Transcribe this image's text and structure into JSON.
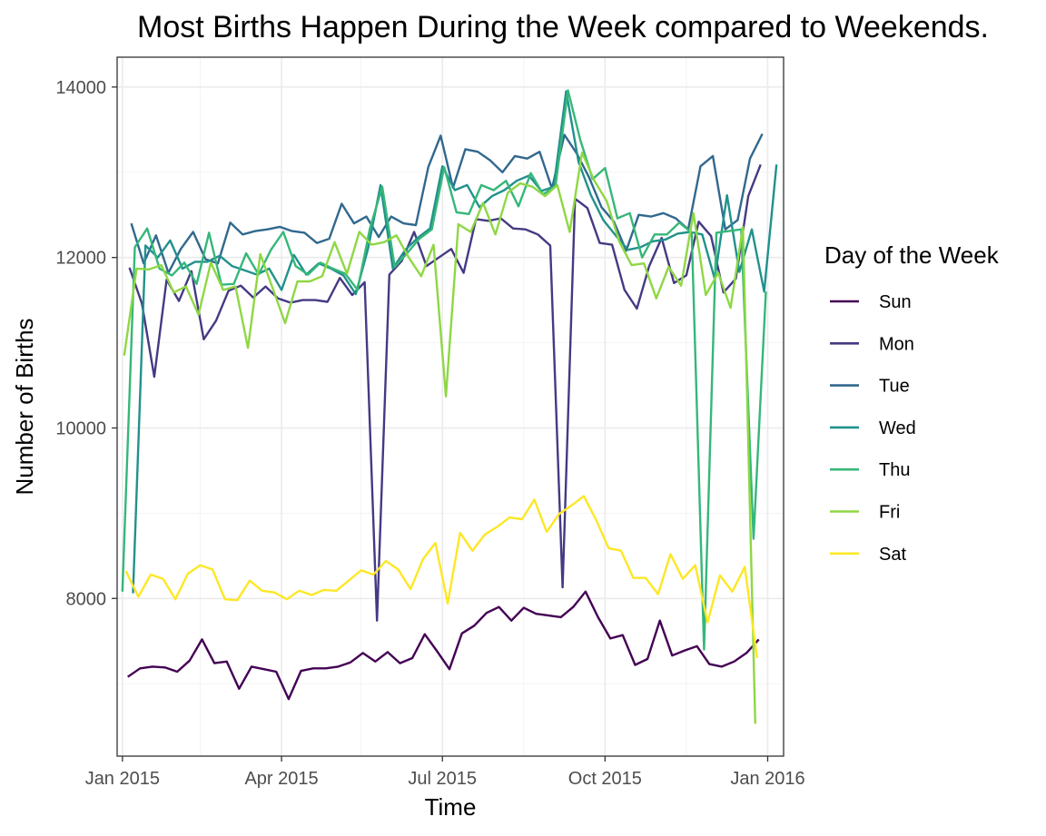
{
  "chart_data": {
    "type": "line",
    "title": "Most Births Happen During the Week compared to Weekends.",
    "xlabel": "Time",
    "ylabel": "Number of Births",
    "xlim": [
      "2014-12-29",
      "2016-01-10"
    ],
    "ylim": [
      6150,
      14350
    ],
    "x_ticks": [
      {
        "date": "2015-01-01",
        "label": "Jan 2015"
      },
      {
        "date": "2015-04-01",
        "label": "Apr 2015"
      },
      {
        "date": "2015-07-01",
        "label": "Jul 2015"
      },
      {
        "date": "2015-10-01",
        "label": "Oct 2015"
      },
      {
        "date": "2016-01-01",
        "label": "Jan 2016"
      }
    ],
    "x_minor_ticks": [
      "2015-02-14",
      "2015-05-16",
      "2015-08-16",
      "2015-11-16"
    ],
    "y_ticks": [
      8000,
      10000,
      12000,
      14000
    ],
    "y_minor_ticks": [
      7000,
      9000,
      11000,
      13000
    ],
    "grid": true,
    "legend": {
      "title": "Day of the Week",
      "position": "right"
    },
    "series": [
      {
        "name": "Sun",
        "color": "#440154",
        "start": "2015-01-04",
        "step_days": 7,
        "values": [
          7080,
          7180,
          7200,
          7190,
          7140,
          7270,
          7520,
          7240,
          7260,
          6940,
          7200,
          7170,
          7140,
          6820,
          7150,
          7180,
          7180,
          7200,
          7250,
          7360,
          7260,
          7370,
          7240,
          7300,
          7580,
          7380,
          7170,
          7590,
          7680,
          7830,
          7900,
          7740,
          7890,
          7820,
          7800,
          7780,
          7900,
          8080,
          7780,
          7530,
          7570,
          7220,
          7290,
          7740,
          7330,
          7390,
          7440,
          7230,
          7200,
          7260,
          7360,
          7520
        ]
      },
      {
        "name": "Mon",
        "color": "#443A83",
        "start": "2015-01-05",
        "step_days": 7,
        "values": [
          11880,
          11460,
          10600,
          11740,
          11490,
          11840,
          11040,
          11260,
          11610,
          11670,
          11530,
          11660,
          11520,
          11470,
          11500,
          11500,
          11480,
          11760,
          11560,
          11710,
          7740,
          11800,
          11960,
          12300,
          11900,
          12000,
          12100,
          11820,
          12450,
          12430,
          12460,
          12340,
          12330,
          12270,
          12140,
          8130,
          12690,
          12580,
          12170,
          12150,
          11620,
          11400,
          11900,
          12230,
          11700,
          11790,
          12420,
          12250,
          11590,
          11750,
          12720,
          13090
        ]
      },
      {
        "name": "Tue",
        "color": "#31688E",
        "start": "2015-01-06",
        "step_days": 7,
        "values": [
          12400,
          11930,
          12260,
          11820,
          12100,
          12300,
          11980,
          11930,
          12410,
          12270,
          12310,
          12330,
          12360,
          12310,
          12290,
          12170,
          12220,
          12630,
          12400,
          12480,
          12240,
          12480,
          12400,
          12380,
          13060,
          13430,
          12820,
          13270,
          13240,
          13140,
          13000,
          13190,
          13160,
          13240,
          12810,
          13440,
          13220,
          12940,
          12590,
          12420,
          12080,
          12500,
          12480,
          12520,
          12460,
          12330,
          13070,
          13190,
          12330,
          12440,
          13160,
          13450
        ]
      },
      {
        "name": "Wed",
        "color": "#21918C",
        "start": "2015-01-07",
        "step_days": 7,
        "values": [
          8060,
          12140,
          12000,
          12200,
          11870,
          11950,
          11950,
          12020,
          11900,
          11850,
          11800,
          11870,
          11620,
          12030,
          11800,
          11930,
          11870,
          11790,
          11570,
          12110,
          12850,
          11870,
          12090,
          12230,
          12340,
          13070,
          12790,
          12850,
          12590,
          12720,
          12790,
          12900,
          12960,
          12780,
          12830,
          13950,
          13120,
          12730,
          12440,
          12260,
          12090,
          12120,
          12190,
          12210,
          12280,
          12300,
          12270,
          11750,
          12730,
          11830,
          12330,
          11600,
          13090
        ]
      },
      {
        "name": "Thu",
        "color": "#35B779",
        "start": "2015-01-01",
        "step_days": 7,
        "values": [
          8080,
          12120,
          12340,
          11870,
          11790,
          11940,
          11690,
          12290,
          11680,
          11690,
          12050,
          11800,
          12090,
          12300,
          11900,
          11800,
          11940,
          11870,
          11810,
          11620,
          12340,
          12830,
          11890,
          12050,
          12220,
          12330,
          13060,
          12530,
          12510,
          12850,
          12790,
          12900,
          12600,
          12990,
          12740,
          12840,
          13960,
          13380,
          12920,
          13050,
          12460,
          12520,
          12000,
          12270,
          12270,
          12410,
          12290,
          7400,
          12290,
          12310,
          12330,
          8700,
          11600
        ]
      },
      {
        "name": "Fri",
        "color": "#8FD744",
        "start": "2015-01-02",
        "step_days": 7,
        "values": [
          10850,
          11870,
          11860,
          11910,
          11590,
          11660,
          11330,
          11940,
          11620,
          11660,
          10940,
          12040,
          11640,
          11230,
          11720,
          11720,
          11780,
          12180,
          11810,
          12300,
          12150,
          12180,
          12260,
          12000,
          11780,
          12150,
          10370,
          12390,
          12300,
          12640,
          12270,
          12760,
          12870,
          12830,
          12720,
          12850,
          12300,
          13230,
          12900,
          12660,
          12190,
          11910,
          11930,
          11520,
          11890,
          11670,
          12520,
          11560,
          11820,
          11410,
          12360,
          6530
        ]
      },
      {
        "name": "Sat",
        "color": "#FDE725",
        "start": "2015-01-03",
        "step_days": 7,
        "values": [
          8320,
          8020,
          8280,
          8230,
          7990,
          8290,
          8390,
          8340,
          7990,
          7980,
          8210,
          8090,
          8070,
          7990,
          8090,
          8040,
          8100,
          8090,
          8210,
          8330,
          8280,
          8440,
          8340,
          8110,
          8460,
          8650,
          7940,
          8770,
          8560,
          8750,
          8840,
          8950,
          8930,
          9160,
          8780,
          8990,
          9090,
          9200,
          8920,
          8590,
          8560,
          8240,
          8240,
          8050,
          8520,
          8230,
          8390,
          7720,
          8270,
          8080,
          8370,
          7300
        ]
      }
    ]
  }
}
